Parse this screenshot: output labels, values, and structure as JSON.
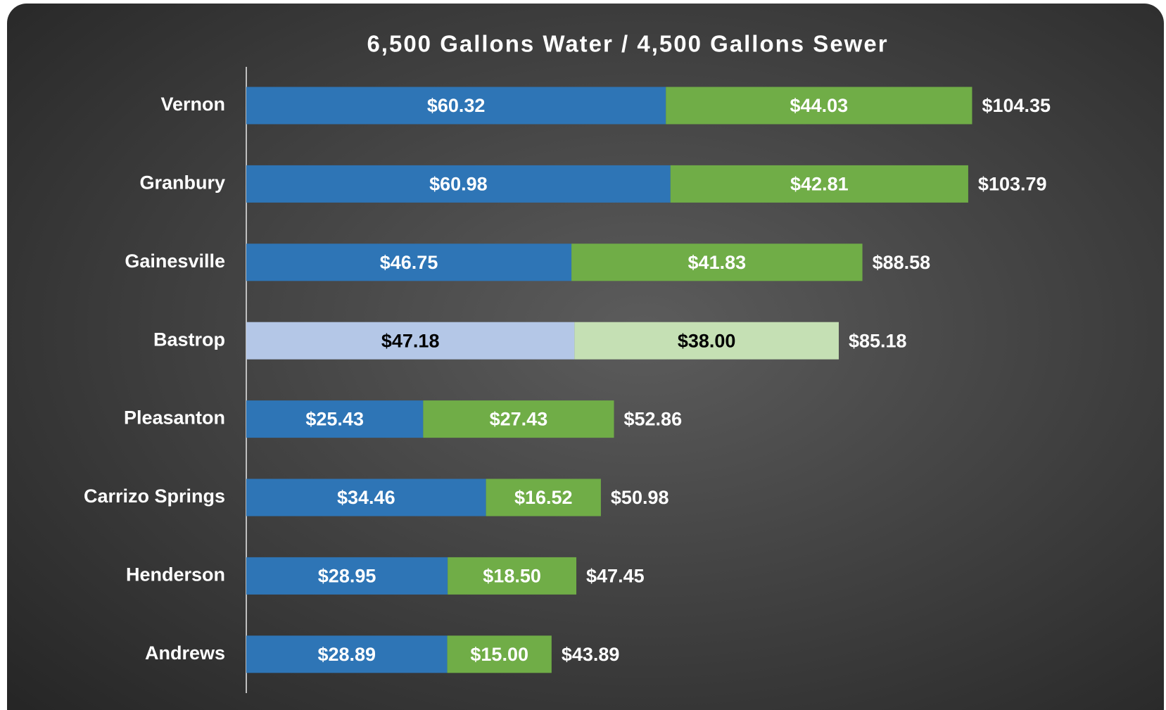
{
  "chart_data": {
    "type": "stacked-bar-horizontal",
    "title": "6,500 Gallons Water / 4,500 Gallons Sewer",
    "categories": [
      "Vernon",
      "Granbury",
      "Gainesville",
      "Bastrop",
      "Pleasanton",
      "Carrizo Springs",
      "Henderson",
      "Andrews"
    ],
    "series": [
      {
        "color": "#2e75b6",
        "colors": [
          "#2e75b6",
          "#2e75b6",
          "#2e75b6",
          "#b4c7e7",
          "#2e75b6",
          "#2e75b6",
          "#2e75b6",
          "#2e75b6"
        ],
        "values": [
          60.32,
          60.98,
          46.75,
          47.18,
          25.43,
          34.46,
          28.95,
          28.89
        ],
        "value_labels": [
          "$60.32",
          "$60.98",
          "$46.75",
          "$47.18",
          "$25.43",
          "$34.46",
          "$28.95",
          "$28.89"
        ]
      },
      {
        "color": "#70ad47",
        "colors": [
          "#70ad47",
          "#70ad47",
          "#70ad47",
          "#c5e0b4",
          "#70ad47",
          "#70ad47",
          "#70ad47",
          "#70ad47"
        ],
        "values": [
          44.03,
          42.81,
          41.83,
          38.0,
          27.43,
          16.52,
          18.5,
          15.0
        ],
        "value_labels": [
          "$44.03",
          "$42.81",
          "$41.83",
          "$38.00",
          "$27.43",
          "$16.52",
          "$18.50",
          "$15.00"
        ]
      }
    ],
    "totals": [
      104.35,
      103.79,
      88.58,
      85.18,
      52.86,
      50.98,
      47.45,
      43.89
    ],
    "total_labels": [
      "$104.35",
      "$103.79",
      "$88.58",
      "$85.18",
      "$52.86",
      "$50.98",
      "$47.45",
      "$43.89"
    ],
    "xlim": [
      0,
      130
    ]
  }
}
